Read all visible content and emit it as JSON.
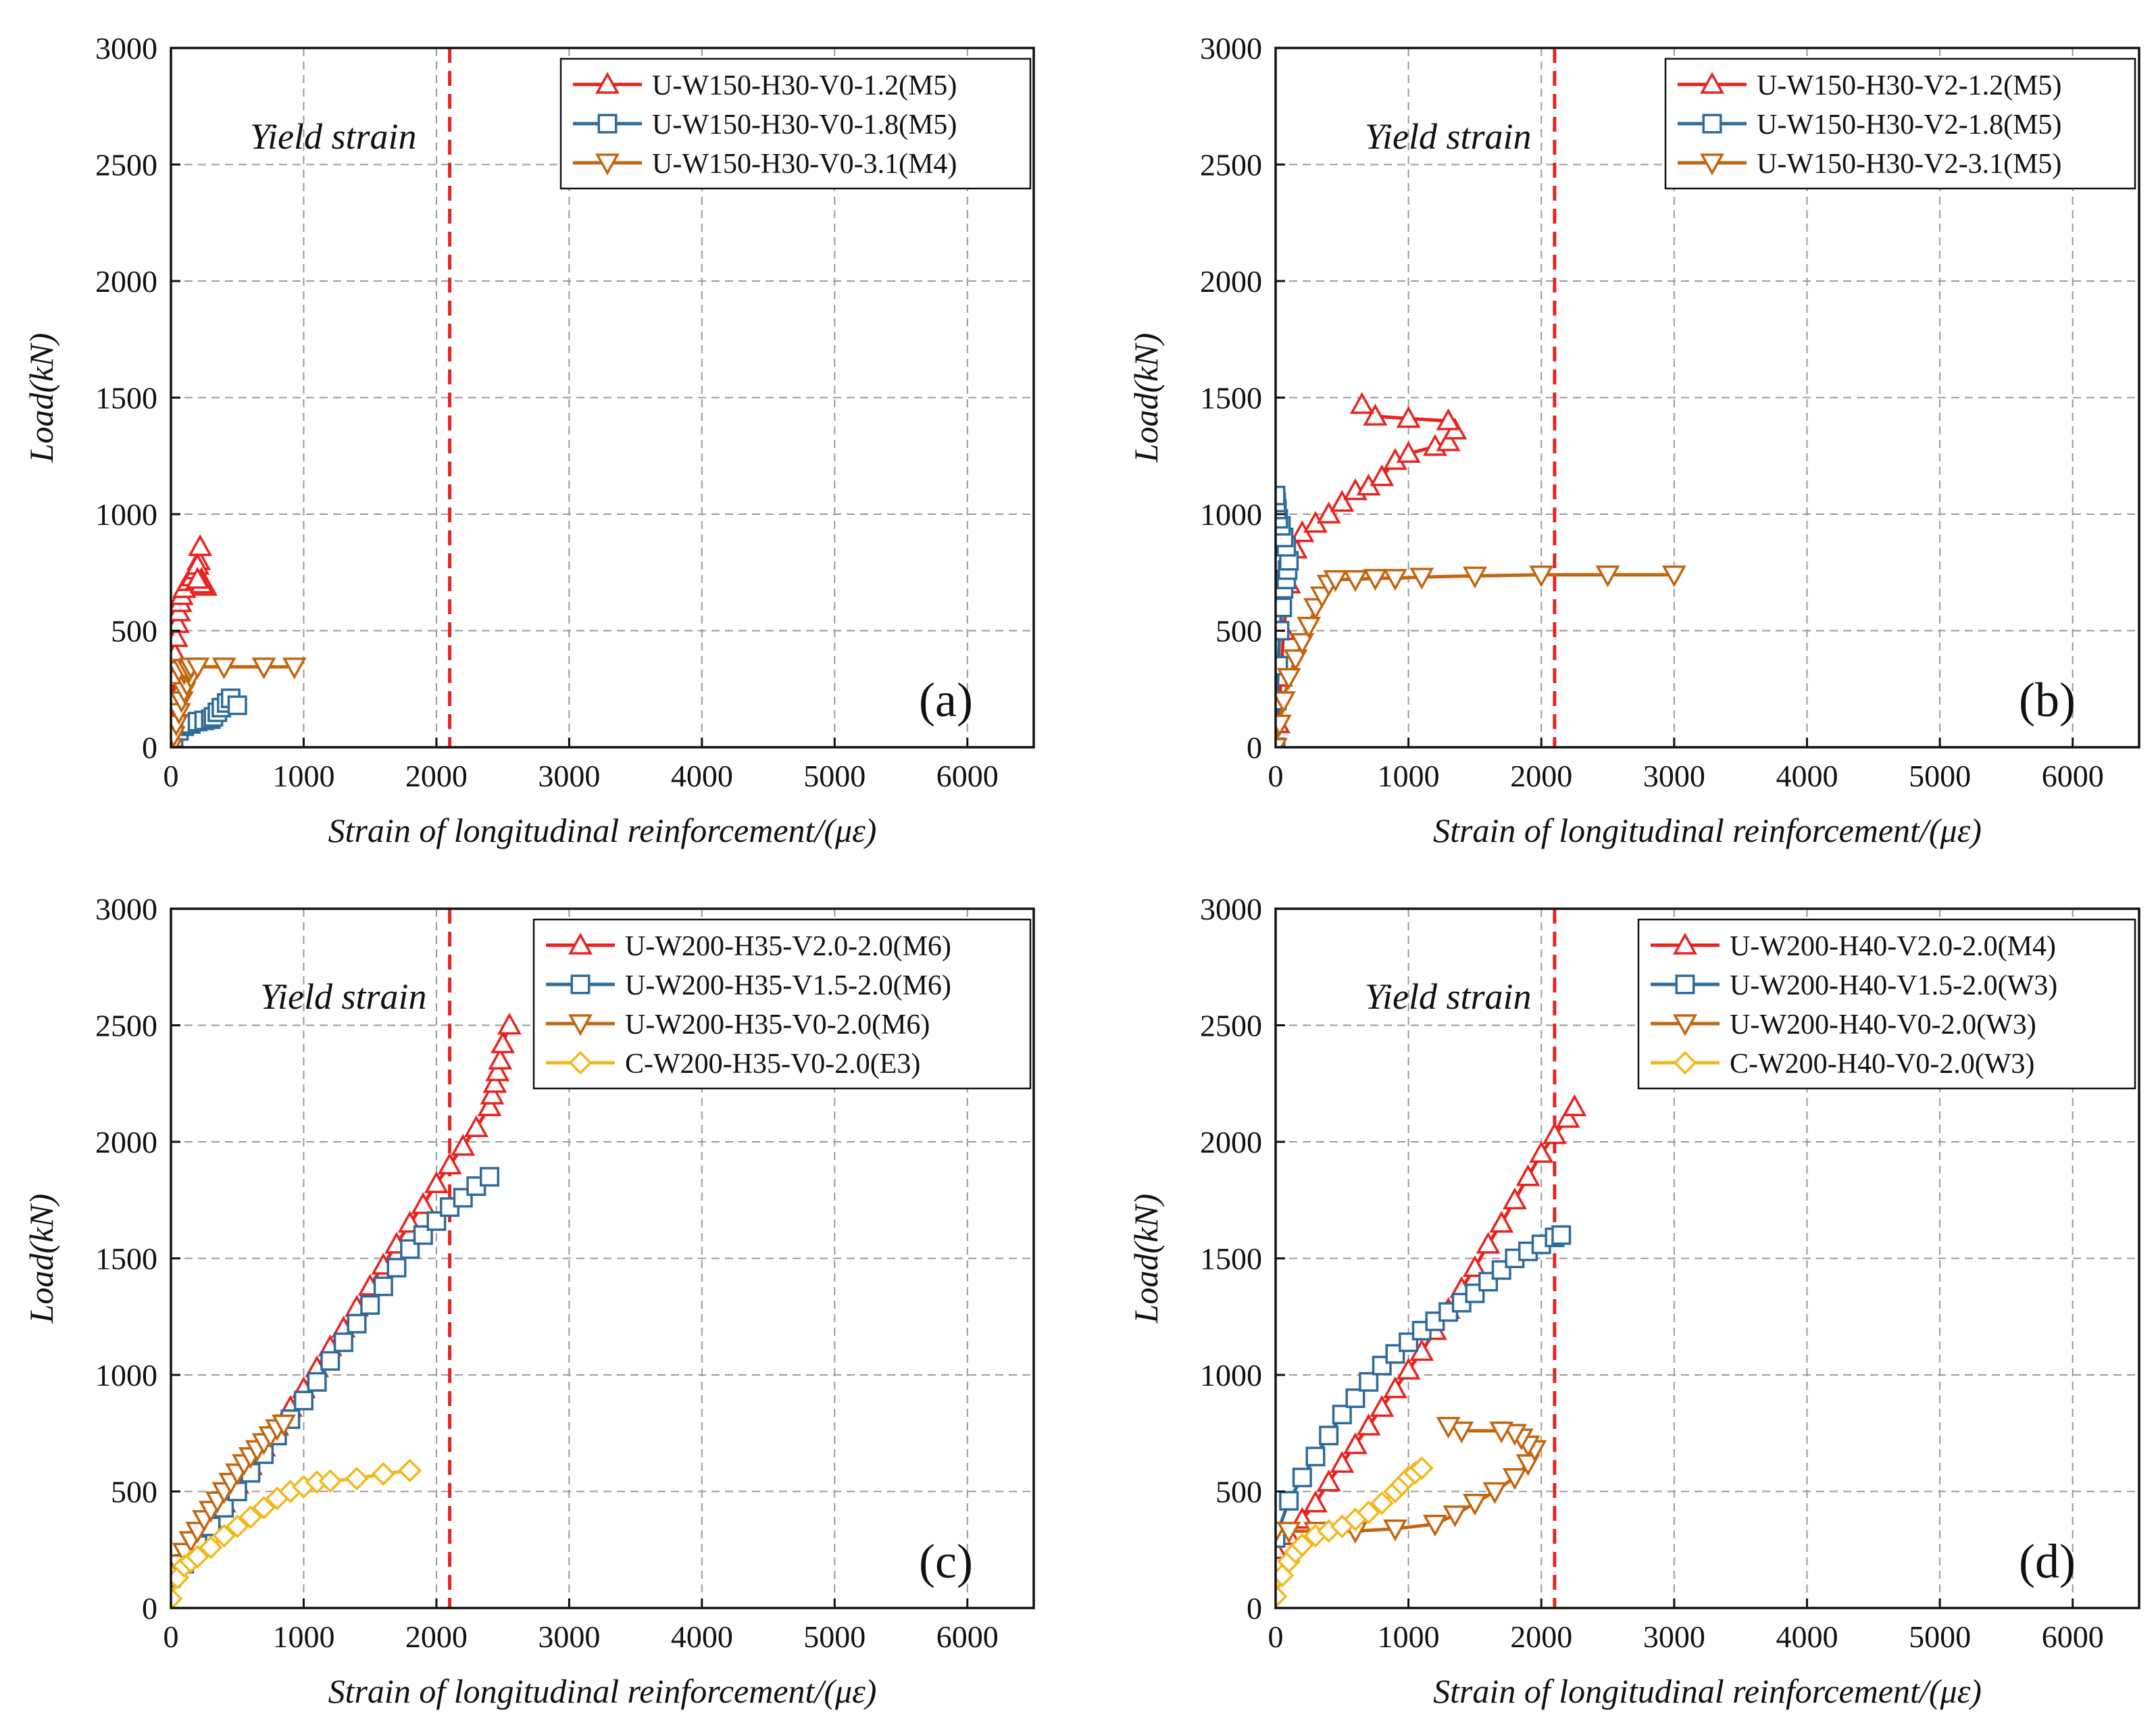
{
  "figure": {
    "colors": {
      "red": "#e8231f",
      "blue": "#2f6b9a",
      "orange": "#c2650f",
      "yellow": "#f2b81a",
      "yield": "#e8231f",
      "grid": "#9a9a9a"
    }
  },
  "chart_data": [
    {
      "type": "line",
      "panel_label": "(a)",
      "xlabel": "Strain of longitudinal reinforcement/(με)",
      "ylabel": "Load(kN)",
      "xlim": [
        0,
        6500
      ],
      "ylim": [
        0,
        3000
      ],
      "xticks": [
        0,
        1000,
        2000,
        3000,
        4000,
        5000,
        6000
      ],
      "yticks": [
        0,
        500,
        1000,
        1500,
        2000,
        2500,
        3000
      ],
      "grid": true,
      "legend_position": "top-right",
      "yield_strain": 2100,
      "yield_label": "Yield strain",
      "series": [
        {
          "name": "U-W150-H30-V0-1.2(M5)",
          "color": "red",
          "marker": "triangle-up",
          "x": [
            0,
            10,
            20,
            25,
            30,
            40,
            50,
            60,
            70,
            80,
            100,
            130,
            160,
            190,
            210,
            220,
            200,
            230,
            260,
            230,
            200
          ],
          "y": [
            0,
            100,
            200,
            300,
            400,
            470,
            530,
            580,
            620,
            650,
            680,
            710,
            730,
            760,
            800,
            860,
            780,
            720,
            690,
            700,
            720
          ]
        },
        {
          "name": "U-W150-H30-V0-1.8(M5)",
          "color": "blue",
          "marker": "square",
          "x": [
            0,
            20,
            60,
            100,
            150,
            200,
            250,
            300,
            320,
            350,
            380,
            420,
            450,
            500
          ],
          "y": [
            0,
            40,
            70,
            90,
            100,
            110,
            115,
            120,
            130,
            150,
            170,
            190,
            210,
            180
          ]
        },
        {
          "name": "U-W150-H30-V0-3.1(M4)",
          "color": "orange",
          "marker": "triangle-down",
          "x": [
            0,
            20,
            40,
            60,
            80,
            100,
            120,
            150,
            100,
            60,
            100,
            140,
            150,
            200,
            400,
            700,
            930
          ],
          "y": [
            0,
            50,
            100,
            150,
            200,
            240,
            270,
            300,
            320,
            330,
            340,
            330,
            345,
            345,
            345,
            345,
            345
          ]
        }
      ]
    },
    {
      "type": "line",
      "panel_label": "(b)",
      "xlabel": "Strain of longitudinal reinforcement/(με)",
      "ylabel": "Load(kN)",
      "xlim": [
        0,
        6500
      ],
      "ylim": [
        0,
        3000
      ],
      "xticks": [
        0,
        1000,
        2000,
        3000,
        4000,
        5000,
        6000
      ],
      "yticks": [
        0,
        500,
        1000,
        1500,
        2000,
        2500,
        3000
      ],
      "grid": true,
      "legend_position": "top-right",
      "yield_strain": 2100,
      "yield_label": "Yield strain",
      "series": [
        {
          "name": "U-W150-H30-V2-1.2(M5)",
          "color": "red",
          "marker": "triangle-up",
          "x": [
            0,
            20,
            40,
            60,
            100,
            150,
            200,
            300,
            400,
            500,
            600,
            700,
            800,
            900,
            1000,
            1200,
            1300,
            1350,
            1300,
            1000,
            750,
            650
          ],
          "y": [
            0,
            100,
            300,
            500,
            700,
            850,
            920,
            960,
            1000,
            1050,
            1100,
            1120,
            1160,
            1230,
            1260,
            1290,
            1310,
            1360,
            1400,
            1410,
            1420,
            1470
          ]
        },
        {
          "name": "U-W150-H30-V2-1.8(M5)",
          "color": "blue",
          "marker": "square",
          "x": [
            0,
            10,
            20,
            30,
            50,
            60,
            80,
            90,
            100,
            80,
            60,
            40,
            20,
            10,
            5,
            0
          ],
          "y": [
            0,
            200,
            350,
            500,
            600,
            680,
            720,
            760,
            800,
            860,
            900,
            950,
            980,
            1020,
            1050,
            1080
          ]
        },
        {
          "name": "U-W150-H30-V2-3.1(M5)",
          "color": "orange",
          "marker": "triangle-down",
          "x": [
            0,
            30,
            60,
            100,
            150,
            200,
            250,
            300,
            350,
            400,
            450,
            600,
            750,
            900,
            1100,
            1500,
            2000,
            2500,
            3000
          ],
          "y": [
            0,
            100,
            200,
            300,
            380,
            450,
            520,
            600,
            650,
            700,
            720,
            720,
            725,
            725,
            730,
            735,
            740,
            740,
            740
          ]
        }
      ]
    },
    {
      "type": "line",
      "panel_label": "(c)",
      "xlabel": "Strain of longitudinal reinforcement/(με)",
      "ylabel": "Load(kN)",
      "xlim": [
        0,
        6500
      ],
      "ylim": [
        0,
        3000
      ],
      "xticks": [
        0,
        1000,
        2000,
        3000,
        4000,
        5000,
        6000
      ],
      "yticks": [
        0,
        500,
        1000,
        1500,
        2000,
        2500,
        3000
      ],
      "grid": true,
      "legend_position": "top-right",
      "yield_strain": 2100,
      "yield_label": "Yield strain",
      "series": [
        {
          "name": "U-W200-H35-V2.0-2.0(M6)",
          "color": "red",
          "marker": "triangle-up",
          "x": [
            0,
            100,
            200,
            300,
            400,
            500,
            600,
            700,
            800,
            900,
            1000,
            1100,
            1200,
            1300,
            1400,
            1500,
            1600,
            1700,
            1800,
            1900,
            2000,
            2100,
            2200,
            2300,
            2400,
            2420,
            2440,
            2460,
            2480,
            2500,
            2550
          ],
          "y": [
            150,
            210,
            290,
            380,
            450,
            530,
            610,
            690,
            780,
            860,
            940,
            1030,
            1120,
            1200,
            1290,
            1380,
            1470,
            1560,
            1650,
            1730,
            1820,
            1900,
            1980,
            2060,
            2150,
            2200,
            2250,
            2300,
            2350,
            2420,
            2500
          ]
        },
        {
          "name": "U-W200-H35-V1.5-2.0(M6)",
          "color": "blue",
          "marker": "square",
          "x": [
            0,
            100,
            200,
            300,
            400,
            500,
            600,
            700,
            800,
            900,
            1000,
            1100,
            1200,
            1300,
            1400,
            1500,
            1600,
            1700,
            1800,
            1900,
            2000,
            2100,
            2200,
            2300,
            2400
          ],
          "y": [
            130,
            190,
            270,
            350,
            430,
            500,
            580,
            660,
            740,
            810,
            890,
            970,
            1060,
            1140,
            1220,
            1300,
            1380,
            1460,
            1540,
            1600,
            1660,
            1720,
            1760,
            1810,
            1850
          ]
        },
        {
          "name": "U-W200-H35-V0-2.0(M6)",
          "color": "orange",
          "marker": "triangle-down",
          "x": [
            0,
            50,
            100,
            150,
            200,
            250,
            300,
            350,
            400,
            450,
            500,
            550,
            600,
            650,
            700,
            750,
            800,
            850
          ],
          "y": [
            150,
            190,
            240,
            290,
            330,
            380,
            420,
            460,
            500,
            540,
            580,
            620,
            650,
            680,
            710,
            740,
            770,
            790
          ]
        },
        {
          "name": "C-W200-H35-V0-2.0(E3)",
          "color": "yellow",
          "marker": "diamond",
          "x": [
            0,
            50,
            100,
            150,
            200,
            300,
            400,
            500,
            600,
            700,
            800,
            900,
            1000,
            1100,
            1200,
            1400,
            1600,
            1800
          ],
          "y": [
            40,
            130,
            180,
            200,
            220,
            260,
            310,
            350,
            390,
            430,
            470,
            500,
            520,
            540,
            545,
            555,
            575,
            590
          ]
        }
      ],
      "annotations": [
        "(c)"
      ]
    },
    {
      "type": "line",
      "panel_label": "(d)",
      "xlabel": "Strain of longitudinal reinforcement/(με)",
      "ylabel": "Load(kN)",
      "xlim": [
        0,
        6500
      ],
      "ylim": [
        0,
        3000
      ],
      "xticks": [
        0,
        1000,
        2000,
        3000,
        4000,
        5000,
        6000
      ],
      "yticks": [
        0,
        500,
        1000,
        1500,
        2000,
        2500,
        3000
      ],
      "grid": true,
      "legend_position": "top-right",
      "yield_strain": 2100,
      "yield_label": "Yield strain",
      "series": [
        {
          "name": "U-W200-H40-V2.0-2.0(M4)",
          "color": "red",
          "marker": "triangle-up",
          "x": [
            0,
            100,
            200,
            300,
            400,
            500,
            600,
            700,
            800,
            900,
            1000,
            1100,
            1200,
            1300,
            1400,
            1500,
            1600,
            1700,
            1800,
            1900,
            2000,
            2100,
            2200,
            2250
          ],
          "y": [
            250,
            310,
            380,
            450,
            540,
            620,
            700,
            780,
            860,
            940,
            1020,
            1100,
            1190,
            1280,
            1370,
            1460,
            1560,
            1650,
            1750,
            1850,
            1950,
            2030,
            2100,
            2150
          ]
        },
        {
          "name": "U-W200-H40-V1.5-2.0(W3)",
          "color": "blue",
          "marker": "square",
          "x": [
            0,
            100,
            200,
            300,
            400,
            500,
            600,
            700,
            800,
            900,
            1000,
            1100,
            1200,
            1300,
            1400,
            1500,
            1600,
            1700,
            1800,
            1900,
            2000,
            2100,
            2150
          ],
          "y": [
            300,
            460,
            560,
            650,
            740,
            830,
            900,
            970,
            1040,
            1090,
            1140,
            1190,
            1230,
            1270,
            1310,
            1350,
            1400,
            1450,
            1500,
            1530,
            1560,
            1590,
            1600
          ]
        },
        {
          "name": "U-W200-H40-V0-2.0(W3)",
          "color": "orange",
          "marker": "triangle-down",
          "x": [
            0,
            100,
            300,
            600,
            900,
            1200,
            1350,
            1500,
            1650,
            1800,
            1900,
            1950,
            1900,
            1850,
            1800,
            1700,
            1400,
            1300
          ],
          "y": [
            330,
            330,
            330,
            330,
            340,
            360,
            400,
            450,
            500,
            560,
            620,
            680,
            700,
            730,
            750,
            760,
            760,
            780
          ]
        },
        {
          "name": "C-W200-H40-V0-2.0(W3)",
          "color": "yellow",
          "marker": "diamond",
          "x": [
            0,
            50,
            100,
            150,
            200,
            300,
            400,
            500,
            600,
            700,
            800,
            900,
            950,
            1000,
            1050,
            1100
          ],
          "y": [
            50,
            140,
            200,
            240,
            270,
            310,
            330,
            350,
            380,
            410,
            450,
            500,
            530,
            560,
            580,
            600
          ]
        }
      ]
    }
  ]
}
